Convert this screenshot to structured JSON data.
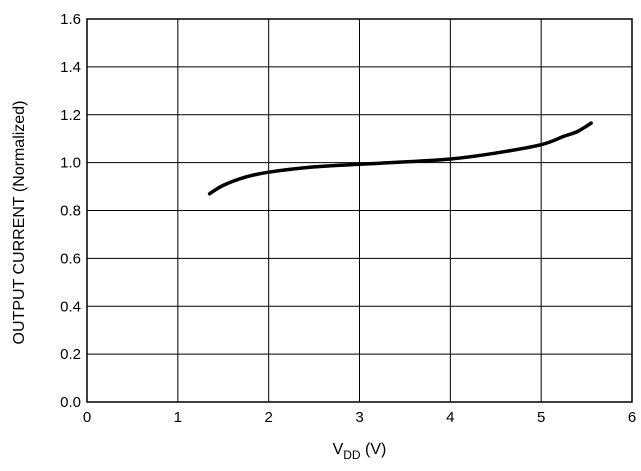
{
  "chart_data": {
    "type": "line",
    "title": "",
    "xlabel": {
      "main": "V",
      "sub": "DD",
      "unit": " (V)"
    },
    "ylabel": "OUTPUT CURRENT (Normalized)",
    "xlim": [
      0,
      6
    ],
    "ylim": [
      0,
      1.6
    ],
    "x_ticks": [
      0,
      1,
      2,
      3,
      4,
      5,
      6
    ],
    "x_tick_labels": [
      "0",
      "1",
      "2",
      "3",
      "4",
      "5",
      "6"
    ],
    "y_ticks": [
      0,
      0.2,
      0.4,
      0.6,
      0.8,
      1.0,
      1.2,
      1.4,
      1.6
    ],
    "y_tick_labels": [
      "0.0",
      "0.2",
      "0.4",
      "0.6",
      "0.8",
      "1.0",
      "1.2",
      "1.4",
      "1.6"
    ],
    "grid": true,
    "line_color": "#000000",
    "series": [
      {
        "x": [
          1.35,
          1.5,
          1.75,
          2.0,
          2.5,
          3.0,
          3.5,
          4.0,
          4.5,
          5.0,
          5.25,
          5.4,
          5.55
        ],
        "y": [
          0.87,
          0.905,
          0.94,
          0.96,
          0.982,
          0.993,
          1.003,
          1.015,
          1.04,
          1.075,
          1.11,
          1.13,
          1.165
        ]
      }
    ]
  }
}
